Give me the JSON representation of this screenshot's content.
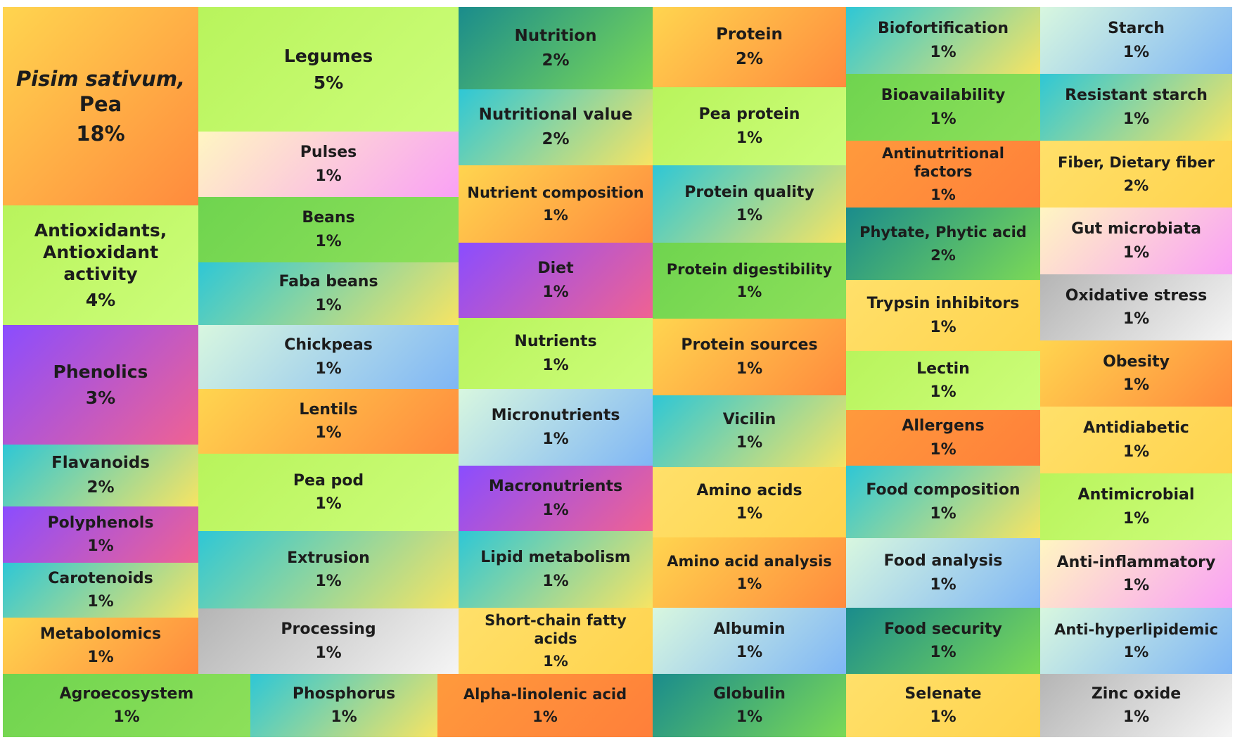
{
  "chart_data": {
    "type": "treemap",
    "unit": "%",
    "items": [
      {
        "label": "Pisim sativum, Pea",
        "value": 18,
        "color": "orange",
        "italic_prefix": "Pisim sativum,"
      },
      {
        "label": "Antioxidants, Antioxidant activity",
        "value": 4,
        "color": "lime"
      },
      {
        "label": "Phenolics",
        "value": 3,
        "color": "purple"
      },
      {
        "label": "Flavanoids",
        "value": 2,
        "color": "cyan"
      },
      {
        "label": "Polyphenols",
        "value": 1,
        "color": "purple"
      },
      {
        "label": "Carotenoids",
        "value": 1,
        "color": "cyan"
      },
      {
        "label": "Metabolomics",
        "value": 1,
        "color": "orange"
      },
      {
        "label": "Legumes",
        "value": 5,
        "color": "lime"
      },
      {
        "label": "Pulses",
        "value": 1,
        "color": "pink"
      },
      {
        "label": "Beans",
        "value": 1,
        "color": "green"
      },
      {
        "label": "Faba beans",
        "value": 1,
        "color": "cyan"
      },
      {
        "label": "Chickpeas",
        "value": 1,
        "color": "sky"
      },
      {
        "label": "Lentils",
        "value": 1,
        "color": "orange"
      },
      {
        "label": "Pea pod",
        "value": 1,
        "color": "lime"
      },
      {
        "label": "Extrusion",
        "value": 1,
        "color": "cyan"
      },
      {
        "label": "Processing",
        "value": 1,
        "color": "gray"
      },
      {
        "label": "Nutrition",
        "value": 2,
        "color": "teal"
      },
      {
        "label": "Nutritional value",
        "value": 2,
        "color": "cyan"
      },
      {
        "label": "Nutrient composition",
        "value": 1,
        "color": "orange"
      },
      {
        "label": "Diet",
        "value": 1,
        "color": "purple"
      },
      {
        "label": "Nutrients",
        "value": 1,
        "color": "lime"
      },
      {
        "label": "Micronutrients",
        "value": 1,
        "color": "sky"
      },
      {
        "label": "Macronutrients",
        "value": 1,
        "color": "purple"
      },
      {
        "label": "Lipid metabolism",
        "value": 1,
        "color": "cyan"
      },
      {
        "label": "Short-chain fatty acids",
        "value": 1,
        "color": "yellow"
      },
      {
        "label": "Protein",
        "value": 2,
        "color": "orange"
      },
      {
        "label": "Pea protein",
        "value": 1,
        "color": "lime"
      },
      {
        "label": "Protein quality",
        "value": 1,
        "color": "cyan"
      },
      {
        "label": "Protein digestibility",
        "value": 1,
        "color": "green"
      },
      {
        "label": "Protein sources",
        "value": 1,
        "color": "orange"
      },
      {
        "label": "Vicilin",
        "value": 1,
        "color": "cyan"
      },
      {
        "label": "Amino acids",
        "value": 1,
        "color": "yellow"
      },
      {
        "label": "Amino acid analysis",
        "value": 1,
        "color": "orange"
      },
      {
        "label": "Albumin",
        "value": 1,
        "color": "sky"
      },
      {
        "label": "Biofortification",
        "value": 1,
        "color": "cyan"
      },
      {
        "label": "Bioavailability",
        "value": 1,
        "color": "green"
      },
      {
        "label": "Antinutritional factors",
        "value": 1,
        "color": "orange-flat"
      },
      {
        "label": "Phytate, Phytic acid",
        "value": 2,
        "color": "teal"
      },
      {
        "label": "Trypsin inhibitors",
        "value": 1,
        "color": "yellow"
      },
      {
        "label": "Lectin",
        "value": 1,
        "color": "lime"
      },
      {
        "label": "Allergens",
        "value": 1,
        "color": "orange-flat"
      },
      {
        "label": "Food composition",
        "value": 1,
        "color": "cyan"
      },
      {
        "label": "Food analysis",
        "value": 1,
        "color": "sky"
      },
      {
        "label": "Food security",
        "value": 1,
        "color": "teal"
      },
      {
        "label": "Starch",
        "value": 1,
        "color": "sky"
      },
      {
        "label": "Resistant starch",
        "value": 1,
        "color": "cyan"
      },
      {
        "label": "Fiber, Dietary fiber",
        "value": 2,
        "color": "yellow"
      },
      {
        "label": "Gut microbiata",
        "value": 1,
        "color": "pink"
      },
      {
        "label": "Oxidative stress",
        "value": 1,
        "color": "gray"
      },
      {
        "label": "Obesity",
        "value": 1,
        "color": "orange"
      },
      {
        "label": "Antidiabetic",
        "value": 1,
        "color": "yellow"
      },
      {
        "label": "Antimicrobial",
        "value": 1,
        "color": "lime"
      },
      {
        "label": "Anti-inflammatory",
        "value": 1,
        "color": "pink"
      },
      {
        "label": "Anti-hyperlipidemic",
        "value": 1,
        "color": "sky"
      },
      {
        "label": "Agroecosystem",
        "value": 1,
        "color": "green"
      },
      {
        "label": "Phosphorus",
        "value": 1,
        "color": "cyan"
      },
      {
        "label": "Alpha-linolenic acid",
        "value": 1,
        "color": "orange-flat"
      },
      {
        "label": "Globulin",
        "value": 1,
        "color": "teal"
      },
      {
        "label": "Selenate",
        "value": 1,
        "color": "yellow"
      },
      {
        "label": "Zinc oxide",
        "value": 1,
        "color": "gray"
      }
    ]
  },
  "palette": {
    "orange": [
      "#ffd54f",
      "#ff8a3d"
    ],
    "orange-flat": [
      "#ff9a3c",
      "#ff7f3a"
    ],
    "lime": [
      "#b8f45c",
      "#cdfd7a"
    ],
    "green": [
      "#6fd44f",
      "#8de05a"
    ],
    "purple": [
      "#8a4dff",
      "#f06292"
    ],
    "cyan": [
      "#2ec7d6",
      "#f7e463"
    ],
    "teal": [
      "#1a8c8c",
      "#7bd957"
    ],
    "sky": [
      "#d8f7df",
      "#7fb6f5"
    ],
    "pink": [
      "#fff6c2",
      "#f9a0f5"
    ],
    "yellow": [
      "#ffe06a",
      "#ffd34e"
    ],
    "gray": [
      "#b5b5b5",
      "#f5f5f5"
    ]
  }
}
